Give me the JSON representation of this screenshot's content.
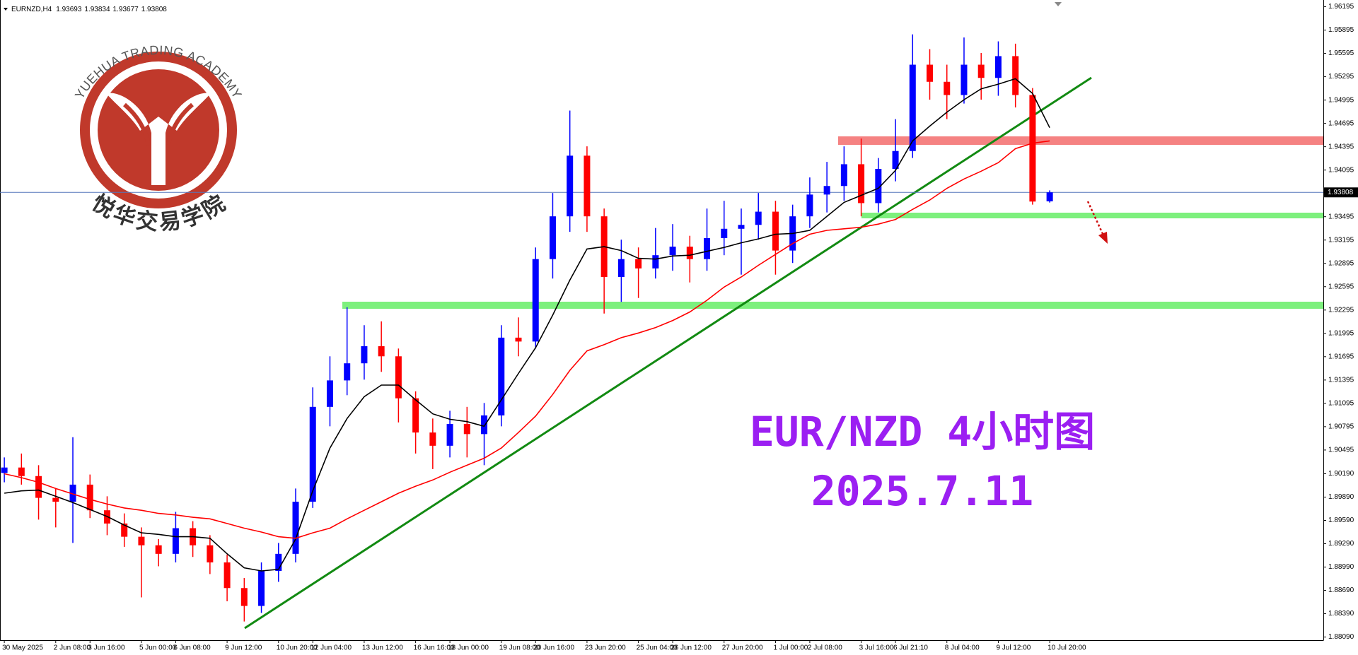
{
  "chart_data": {
    "type": "candlestick",
    "symbol": "EURNZD,H4",
    "title": "EUR/NZD 4小时图",
    "subtitle": "2025.7.11",
    "logo_arc": "YUEHUA TRADING ACADEMY",
    "logo_text": "悦华交易学院",
    "categories": [
      "30 May 2025",
      null,
      null,
      "2 Jun 08:00",
      null,
      "3 Jun 16:00",
      null,
      null,
      "5 Jun 00:00",
      null,
      "6 Jun 08:00",
      null,
      null,
      "9 Jun 12:00",
      null,
      null,
      "10 Jun 20:00",
      null,
      "12 Jun 04:00",
      null,
      null,
      "13 Jun 12:00",
      null,
      null,
      "16 Jun 16:00",
      null,
      "18 Jun 00:00",
      null,
      null,
      "19 Jun 08:00",
      null,
      "20 Jun 16:00",
      null,
      null,
      "23 Jun 20:00",
      null,
      null,
      "25 Jun 04:00",
      null,
      "26 Jun 12:00",
      null,
      null,
      "27 Jun 20:00",
      null,
      null,
      "1 Jul 00:00",
      null,
      "2 Jul 08:00",
      null,
      null,
      "3 Jul 16:00",
      null,
      "6 Jul 21:10",
      null,
      null,
      "8 Jul 04:00",
      null,
      null,
      "9 Jul 12:00",
      null,
      null,
      "10 Jul 20:00"
    ],
    "open": [
      1.902,
      1.9027,
      1.9016,
      1.8988,
      1.8983,
      1.9005,
      1.8972,
      1.8955,
      1.8938,
      1.8927,
      1.8916,
      1.8949,
      1.8927,
      1.8905,
      1.8872,
      1.8849,
      1.8894,
      1.8916,
      1.8983,
      1.9105,
      1.9139,
      1.9161,
      1.9183,
      1.917,
      1.9116,
      1.9072,
      1.9055,
      1.9083,
      1.907,
      1.9094,
      1.9194,
      1.9189,
      1.9295,
      1.935,
      1.9428,
      1.935,
      1.9272,
      1.9295,
      1.9283,
      1.93,
      1.9311,
      1.9295,
      1.9322,
      1.9334,
      1.9339,
      1.9356,
      1.9306,
      1.935,
      1.9378,
      1.9389,
      1.9417,
      1.9367,
      1.9411,
      1.9434,
      1.9545,
      1.9523,
      1.9506,
      1.9545,
      1.9528,
      1.9556,
      1.9506,
      1.93693
    ],
    "high": [
      1.904,
      1.9045,
      1.903,
      1.9,
      1.9066,
      1.9018,
      1.899,
      1.8968,
      1.895,
      1.8935,
      1.897,
      1.8958,
      1.894,
      1.8915,
      1.8885,
      1.8905,
      1.893,
      1.9,
      1.913,
      1.917,
      1.9233,
      1.921,
      1.9215,
      1.918,
      1.9125,
      1.909,
      1.91,
      1.9105,
      1.911,
      1.921,
      1.922,
      1.931,
      1.938,
      1.9486,
      1.944,
      1.936,
      1.932,
      1.931,
      1.9335,
      1.934,
      1.9325,
      1.936,
      1.937,
      1.936,
      1.938,
      1.937,
      1.9365,
      1.94,
      1.942,
      1.944,
      1.945,
      1.9425,
      1.9475,
      1.9584,
      1.9565,
      1.9545,
      1.958,
      1.956,
      1.9575,
      1.9572,
      1.9515,
      1.93834
    ],
    "low": [
      1.9008,
      1.9005,
      1.896,
      1.895,
      1.893,
      1.8962,
      1.894,
      1.8925,
      1.886,
      1.89,
      1.8905,
      1.8912,
      1.889,
      1.8855,
      1.8829,
      1.884,
      1.888,
      1.8905,
      1.8975,
      1.908,
      1.912,
      1.914,
      1.915,
      1.9085,
      1.9045,
      1.9025,
      1.904,
      1.904,
      1.903,
      1.908,
      1.917,
      1.918,
      1.927,
      1.933,
      1.933,
      1.9225,
      1.924,
      1.9245,
      1.927,
      1.928,
      1.9265,
      1.928,
      1.93,
      1.9275,
      1.932,
      1.9275,
      1.929,
      1.9335,
      1.9355,
      1.937,
      1.935,
      1.9355,
      1.9395,
      1.9425,
      1.95,
      1.9475,
      1.9495,
      1.95,
      1.9505,
      1.949,
      1.9365,
      1.93677
    ],
    "close": [
      1.9027,
      1.9016,
      1.8988,
      1.8983,
      1.9005,
      1.8972,
      1.8955,
      1.8938,
      1.8927,
      1.8916,
      1.8949,
      1.8927,
      1.8905,
      1.8872,
      1.8849,
      1.8894,
      1.8916,
      1.8983,
      1.9105,
      1.9139,
      1.9161,
      1.9183,
      1.917,
      1.9116,
      1.9072,
      1.9055,
      1.9083,
      1.907,
      1.9094,
      1.9194,
      1.9189,
      1.9295,
      1.935,
      1.9428,
      1.935,
      1.9272,
      1.9295,
      1.9283,
      1.93,
      1.9311,
      1.9295,
      1.9322,
      1.9334,
      1.9339,
      1.9356,
      1.9306,
      1.935,
      1.9378,
      1.9389,
      1.9417,
      1.9367,
      1.9411,
      1.9434,
      1.9545,
      1.9523,
      1.9506,
      1.9545,
      1.9528,
      1.9556,
      1.9506,
      1.9369,
      1.93808
    ],
    "up_color": "#0000ff",
    "down_color": "#ff0000",
    "indicators": [
      {
        "color": "#000000",
        "values": [
          1.8994,
          1.8997,
          1.8998,
          1.899,
          1.8982,
          1.8973,
          1.8964,
          1.8953,
          1.8943,
          1.8941,
          1.8938,
          1.8938,
          1.8936,
          1.8916,
          1.8898,
          1.8894,
          1.8896,
          1.8935,
          1.8997,
          1.9052,
          1.909,
          1.9118,
          1.9133,
          1.9133,
          1.9114,
          1.9096,
          1.9089,
          1.9086,
          1.908,
          1.9114,
          1.9148,
          1.9181,
          1.9223,
          1.9268,
          1.9308,
          1.9311,
          1.9306,
          1.9296,
          1.9295,
          1.9299,
          1.93,
          1.9305,
          1.931,
          1.9316,
          1.9321,
          1.9327,
          1.9328,
          1.9332,
          1.935,
          1.9368,
          1.9377,
          1.9386,
          1.9409,
          1.9447,
          1.9466,
          1.9484,
          1.95,
          1.9514,
          1.952,
          1.9527,
          1.9508,
          1.9464
        ]
      },
      {
        "color": "#ff0000",
        "values": [
          1.9019,
          1.9014,
          1.9008,
          1.9,
          1.8993,
          1.8986,
          1.898,
          1.8975,
          1.8972,
          1.8968,
          1.8966,
          1.8963,
          1.8961,
          1.8955,
          1.8949,
          1.8944,
          1.8938,
          1.8936,
          1.8943,
          1.8949,
          1.8961,
          1.8972,
          1.8983,
          1.8994,
          1.9003,
          1.9011,
          1.9021,
          1.903,
          1.9039,
          1.9052,
          1.9072,
          1.9093,
          1.9121,
          1.9152,
          1.9177,
          1.9185,
          1.9194,
          1.92,
          1.9207,
          1.9216,
          1.9227,
          1.9242,
          1.9259,
          1.9272,
          1.9287,
          1.9301,
          1.9315,
          1.9327,
          1.9332,
          1.9334,
          1.9336,
          1.934,
          1.9346,
          1.9359,
          1.9371,
          1.9386,
          1.9398,
          1.9408,
          1.9419,
          1.9437,
          1.9444,
          1.9447
        ]
      }
    ],
    "ylim": [
      1.8805,
      1.9626
    ],
    "yticks": [
      1.96195,
      1.95895,
      1.95595,
      1.95295,
      1.94995,
      1.94695,
      1.94395,
      1.94095,
      1.93495,
      1.93195,
      1.92895,
      1.92595,
      1.92295,
      1.91995,
      1.91695,
      1.91395,
      1.91095,
      1.90795,
      1.90495,
      {
        "value": 1.9019,
        "label": "1.90190"
      },
      {
        "value": 1.8989,
        "label": "1.89890"
      },
      {
        "value": 1.8959,
        "label": "1.89590"
      },
      {
        "value": 1.8929,
        "label": "1.89290"
      },
      {
        "value": 1.8899,
        "label": "1.88990"
      },
      {
        "value": 1.8869,
        "label": "1.88690"
      },
      {
        "value": 1.8839,
        "label": "1.88390"
      },
      {
        "value": 1.8809,
        "label": "1.88090"
      }
    ]
  }
}
